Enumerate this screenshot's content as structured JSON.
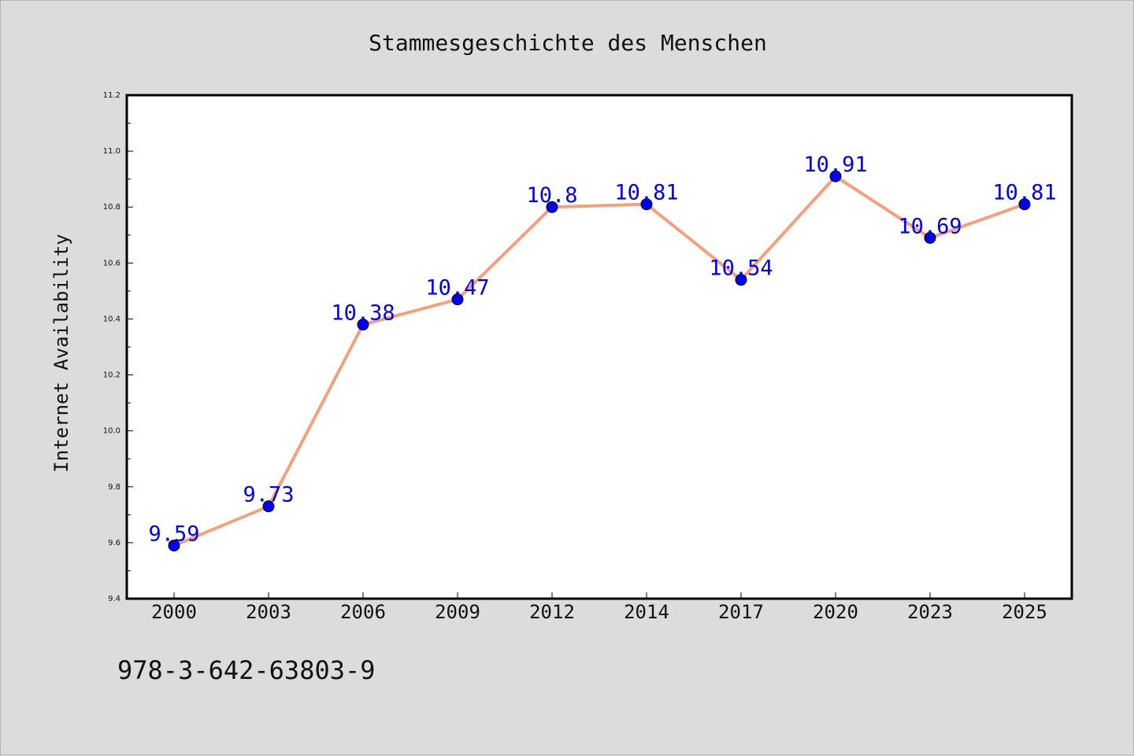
{
  "chart_data": {
    "type": "line",
    "title": "Stammesgeschichte des Menschen",
    "xlabel": "",
    "ylabel": "Internet Availability",
    "categories": [
      "2000",
      "2003",
      "2006",
      "2009",
      "2012",
      "2014",
      "2017",
      "2020",
      "2023",
      "2025"
    ],
    "series": [
      {
        "values": [
          9.59,
          9.73,
          10.38,
          10.47,
          10.8,
          10.81,
          10.54,
          10.91,
          10.69,
          10.81
        ],
        "data_labels": [
          "9.59",
          "9.73",
          "10.38",
          "10.47",
          "10.8",
          "10.81",
          "10.54",
          "10.91",
          "10.69",
          "10.81"
        ]
      }
    ],
    "ylim": [
      9.4,
      11.2
    ],
    "yticks": [
      "9.4",
      "9.6",
      "9.8",
      "10.0",
      "10.2",
      "10.4",
      "10.6",
      "10.8",
      "11.0",
      "11.2"
    ],
    "grid": false,
    "colors": {
      "line": "#f4a07c",
      "marker": "#0000ee",
      "label": "#0000ee",
      "background": "#dcdcdc",
      "plot_area": "#ffffff"
    }
  },
  "footer": {
    "isbn": "978-3-642-63803-9"
  }
}
